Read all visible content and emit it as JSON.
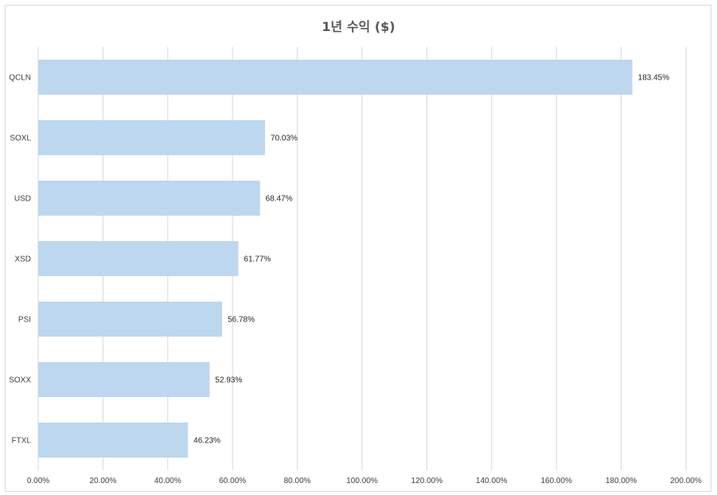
{
  "chart_data": {
    "type": "bar",
    "orientation": "horizontal",
    "title": "1년 수익 ($)",
    "xlabel": "",
    "ylabel": "",
    "categories": [
      "QCLN",
      "SOXL",
      "USD",
      "XSD",
      "PSI",
      "SOXX",
      "FTXL"
    ],
    "values": [
      183.45,
      70.03,
      68.47,
      61.77,
      56.78,
      52.93,
      46.23
    ],
    "data_labels": [
      "183.45%",
      "70.03%",
      "68.47%",
      "61.77%",
      "56.78%",
      "52.93%",
      "46.23%"
    ],
    "xlim": [
      0,
      200
    ],
    "x_ticks": [
      0,
      20,
      40,
      60,
      80,
      100,
      120,
      140,
      160,
      180,
      200
    ],
    "x_tick_labels": [
      "0.00%",
      "20.00%",
      "40.00%",
      "60.00%",
      "80.00%",
      "100.00%",
      "120.00%",
      "140.00%",
      "160.00%",
      "180.00%",
      "200.00%"
    ],
    "grid": "vertical",
    "legend": "none",
    "bar_color": "#bdd7ee",
    "gridline_color": "#d9d9d9"
  }
}
